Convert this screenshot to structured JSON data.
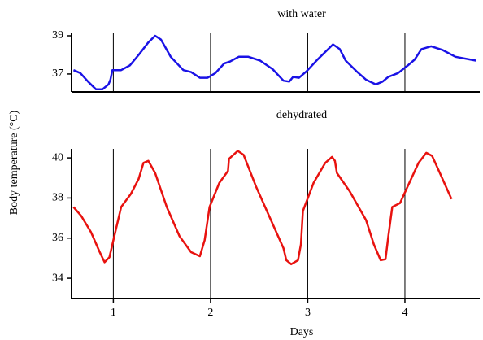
{
  "chart_data": [
    {
      "type": "line",
      "title": "with water",
      "color": "#1a12e6",
      "x": [
        0.59,
        0.66,
        0.74,
        0.82,
        0.89,
        0.95,
        0.97,
        0.99,
        1.08,
        1.17,
        1.26,
        1.36,
        1.43,
        1.49,
        1.59,
        1.72,
        1.8,
        1.89,
        1.97,
        2.05,
        2.14,
        2.2,
        2.29,
        2.39,
        2.51,
        2.64,
        2.75,
        2.81,
        2.85,
        2.91,
        2.99,
        3.1,
        3.18,
        3.26,
        3.33,
        3.39,
        3.5,
        3.6,
        3.7,
        3.77,
        3.83,
        3.93,
        4.03,
        4.1,
        4.17,
        4.27,
        4.39,
        4.52,
        4.73
      ],
      "values": [
        37.2,
        37.05,
        36.6,
        36.2,
        36.2,
        36.45,
        36.7,
        37.2,
        37.2,
        37.45,
        38.0,
        38.65,
        39.0,
        38.8,
        37.9,
        37.2,
        37.1,
        36.8,
        36.8,
        37.05,
        37.55,
        37.65,
        37.9,
        37.9,
        37.7,
        37.25,
        36.65,
        36.6,
        36.85,
        36.8,
        37.15,
        37.75,
        38.15,
        38.55,
        38.3,
        37.7,
        37.15,
        36.7,
        36.45,
        36.6,
        36.85,
        37.05,
        37.45,
        37.75,
        38.3,
        38.45,
        38.25,
        37.9,
        37.7
      ],
      "xlim": [
        0.57,
        4.77
      ],
      "ylim": [
        36.06,
        39.17
      ],
      "yticks": [
        37,
        39
      ]
    },
    {
      "type": "line",
      "title": "dehydrated",
      "color": "#e8120f",
      "xlabel": "Days",
      "ylabel": "Body temperature (°C)",
      "x": [
        0.59,
        0.67,
        0.77,
        0.86,
        0.91,
        0.96,
        1.01,
        1.08,
        1.18,
        1.26,
        1.31,
        1.36,
        1.43,
        1.55,
        1.68,
        1.8,
        1.89,
        1.94,
        1.99,
        2.09,
        2.18,
        2.19,
        2.28,
        2.34,
        2.47,
        2.64,
        2.75,
        2.78,
        2.83,
        2.9,
        2.93,
        2.95,
        3.06,
        3.18,
        3.25,
        3.28,
        3.3,
        3.43,
        3.6,
        3.68,
        3.75,
        3.8,
        3.83,
        3.87,
        3.95,
        4.03,
        4.14,
        4.22,
        4.28,
        4.35,
        4.48
      ],
      "values": [
        37.55,
        37.1,
        36.3,
        35.3,
        34.8,
        35.05,
        36.1,
        37.55,
        38.2,
        38.95,
        39.75,
        39.85,
        39.25,
        37.55,
        36.1,
        35.3,
        35.1,
        35.9,
        37.55,
        38.75,
        39.35,
        39.95,
        40.35,
        40.15,
        38.55,
        36.7,
        35.5,
        34.9,
        34.7,
        34.9,
        35.7,
        37.35,
        38.75,
        39.75,
        40.05,
        39.85,
        39.25,
        38.35,
        36.9,
        35.7,
        34.9,
        34.95,
        36.1,
        37.55,
        37.75,
        38.6,
        39.75,
        40.25,
        40.1,
        39.35,
        37.95
      ],
      "xlim": [
        0.57,
        4.77
      ],
      "xticks": [
        1,
        2,
        3,
        4
      ],
      "grid": "x",
      "ylim": [
        32.99,
        40.45
      ],
      "yticks": [
        34,
        36,
        38,
        40
      ]
    }
  ]
}
